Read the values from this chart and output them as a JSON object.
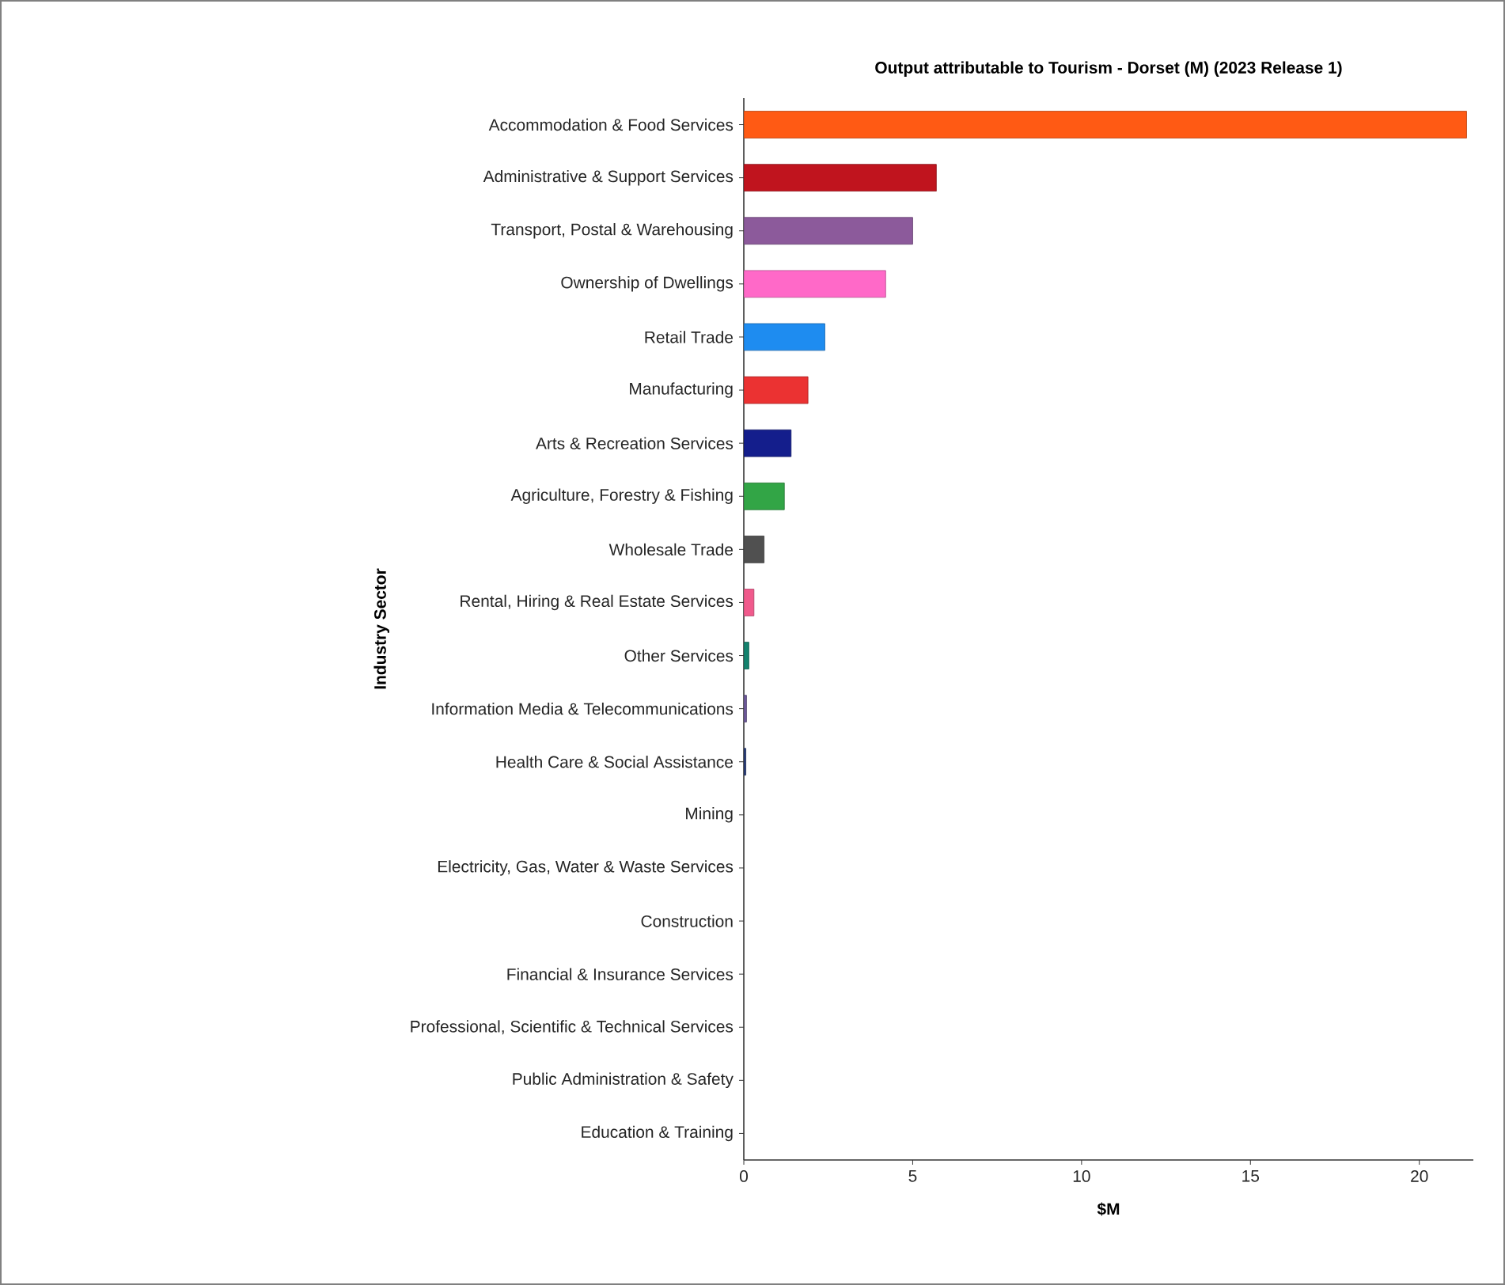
{
  "chart_data": {
    "type": "bar",
    "orientation": "horizontal",
    "title": "Output attributable to Tourism - Dorset (M) (2023 Release 1)",
    "xlabel": "$M",
    "ylabel": "Industry Sector",
    "categories": [
      "Accommodation & Food Services",
      "Administrative & Support Services",
      "Transport, Postal & Warehousing",
      "Ownership of Dwellings",
      "Retail Trade",
      "Manufacturing",
      "Arts & Recreation Services",
      "Agriculture, Forestry & Fishing",
      "Wholesale Trade",
      "Rental, Hiring & Real Estate Services",
      "Other Services",
      "Information Media & Telecommunications",
      "Health Care & Social Assistance",
      "Mining",
      "Electricity, Gas, Water & Waste Services",
      "Construction",
      "Financial & Insurance Services",
      "Professional, Scientific & Technical Services",
      "Public Administration & Safety",
      "Education & Training"
    ],
    "values": [
      21.4,
      5.7,
      5.0,
      4.2,
      2.4,
      1.9,
      1.4,
      1.2,
      0.6,
      0.3,
      0.15,
      0.08,
      0.06,
      0,
      0,
      0,
      0,
      0,
      0,
      0
    ],
    "colors": [
      "#ff5a14",
      "#c0141e",
      "#8c5a9b",
      "#ff69c8",
      "#1e8cf0",
      "#eb3232",
      "#141e8c",
      "#32a546",
      "#505050",
      "#f05a8c",
      "#14826e",
      "#6e5a9b",
      "#283c78",
      "#808080",
      "#808080",
      "#808080",
      "#808080",
      "#808080",
      "#808080",
      "#808080"
    ],
    "xlim": [
      0,
      21.6
    ],
    "xticks": [
      0,
      5,
      10,
      15,
      20
    ],
    "grid": false
  }
}
